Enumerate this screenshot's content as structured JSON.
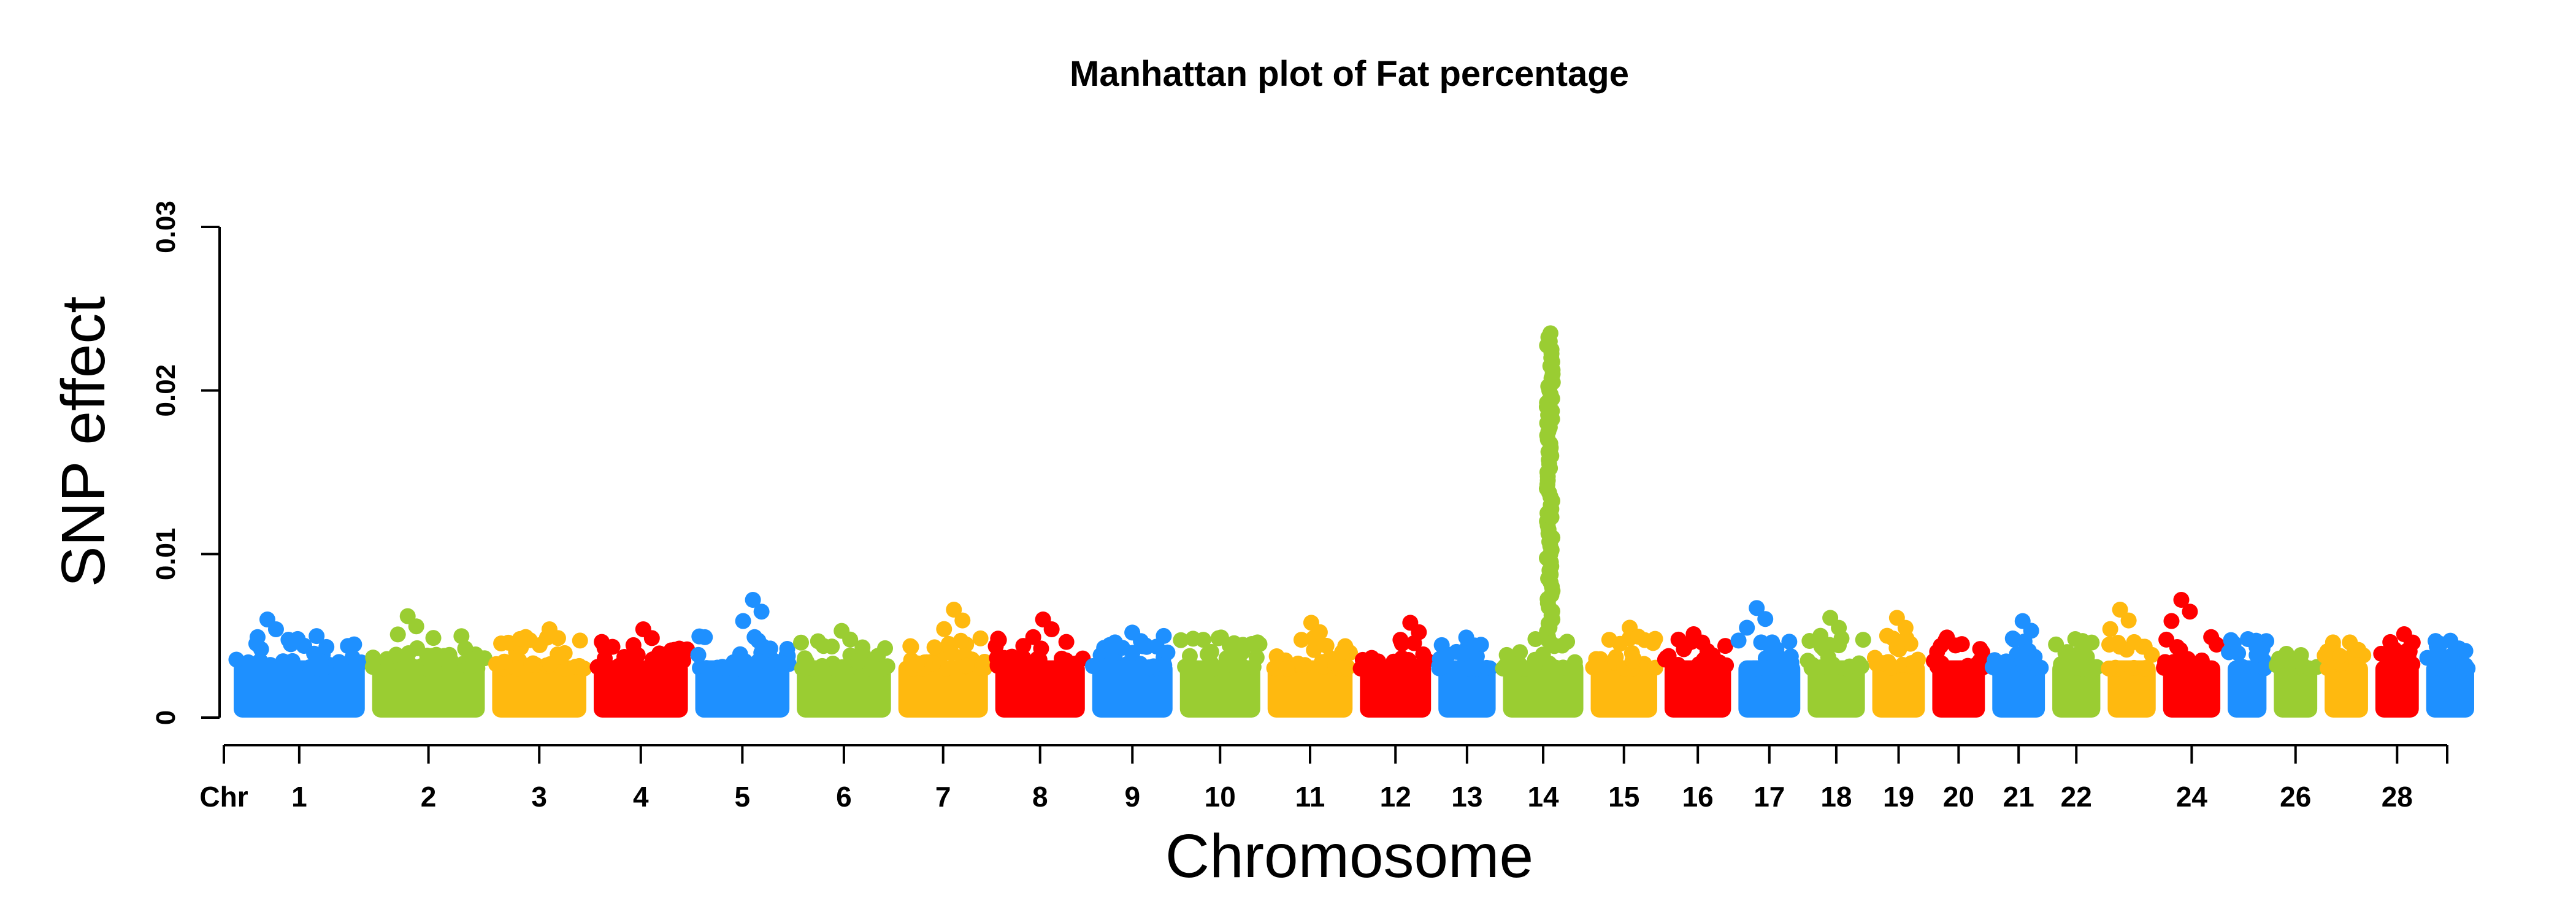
{
  "chart_data": {
    "type": "scatter",
    "title": "Manhattan plot of Fat percentage",
    "xlabel": "Chromosome",
    "ylabel": "SNP effect",
    "ylim": [
      0,
      0.03
    ],
    "yticks": [
      {
        "value": 0,
        "label": "0"
      },
      {
        "value": 0.01,
        "label": "0.01"
      },
      {
        "value": 0.02,
        "label": "0.02"
      },
      {
        "value": 0.03,
        "label": "0.03"
      }
    ],
    "x_prefix_label": "Chr",
    "grid": false,
    "legend": "none",
    "colors": [
      "#1E90FF",
      "#9ACD32",
      "#FFB90F",
      "#FF0000"
    ],
    "chromosomes": [
      {
        "chr": 1,
        "label": "1",
        "span": [
          0.0,
          1.5
        ],
        "peak": 0.006
      },
      {
        "chr": 2,
        "label": "2",
        "span": [
          1.5,
          2.8
        ],
        "peak": 0.0062
      },
      {
        "chr": 3,
        "label": "3",
        "span": [
          2.8,
          3.9
        ],
        "peak": 0.0054
      },
      {
        "chr": 4,
        "label": "4",
        "span": [
          3.9,
          5.0
        ],
        "peak": 0.0054
      },
      {
        "chr": 5,
        "label": "5",
        "span": [
          5.0,
          6.1
        ],
        "peak": 0.0072
      },
      {
        "chr": 6,
        "label": "6",
        "span": [
          6.1,
          7.2
        ],
        "peak": 0.0053
      },
      {
        "chr": 7,
        "label": "7",
        "span": [
          7.2,
          8.25
        ],
        "peak": 0.0066
      },
      {
        "chr": 8,
        "label": "8",
        "span": [
          8.25,
          9.3
        ],
        "peak": 0.006
      },
      {
        "chr": 9,
        "label": "9",
        "span": [
          9.3,
          10.25
        ],
        "peak": 0.0052
      },
      {
        "chr": 10,
        "label": "10",
        "span": [
          10.25,
          11.2
        ],
        "peak": 0.0049
      },
      {
        "chr": 11,
        "label": "11",
        "span": [
          11.2,
          12.2
        ],
        "peak": 0.0058
      },
      {
        "chr": 12,
        "label": "12",
        "span": [
          12.2,
          13.05
        ],
        "peak": 0.0058
      },
      {
        "chr": 13,
        "label": "13",
        "span": [
          13.05,
          13.75
        ],
        "peak": 0.0049
      },
      {
        "chr": 14,
        "label": "14",
        "span": [
          13.75,
          14.7
        ],
        "peak": 0.0236
      },
      {
        "chr": 15,
        "label": "15",
        "span": [
          14.7,
          15.5
        ],
        "peak": 0.0055
      },
      {
        "chr": 16,
        "label": "16",
        "span": [
          15.5,
          16.3
        ],
        "peak": 0.0051
      },
      {
        "chr": 17,
        "label": "17",
        "span": [
          16.3,
          17.05
        ],
        "peak": 0.0067
      },
      {
        "chr": 18,
        "label": "18",
        "span": [
          17.05,
          17.75
        ],
        "peak": 0.0061
      },
      {
        "chr": 19,
        "label": "19",
        "span": [
          17.75,
          18.4
        ],
        "peak": 0.0061
      },
      {
        "chr": 20,
        "label": "20",
        "span": [
          18.4,
          19.05
        ],
        "peak": 0.0049
      },
      {
        "chr": 21,
        "label": "21",
        "span": [
          19.05,
          19.7
        ],
        "peak": 0.0059
      },
      {
        "chr": 22,
        "label": "22",
        "span": [
          19.7,
          20.3
        ],
        "peak": 0.0048
      },
      {
        "chr": 23,
        "label": "",
        "span": [
          20.3,
          20.9
        ],
        "peak": 0.0066
      },
      {
        "chr": 24,
        "label": "24",
        "span": [
          20.9,
          21.6
        ],
        "peak": 0.0072
      },
      {
        "chr": 25,
        "label": "",
        "span": [
          21.6,
          22.1
        ],
        "peak": 0.0048
      },
      {
        "chr": 26,
        "label": "26",
        "span": [
          22.1,
          22.65
        ],
        "peak": 0.0039
      },
      {
        "chr": 27,
        "label": "",
        "span": [
          22.65,
          23.2
        ],
        "peak": 0.0046
      },
      {
        "chr": 28,
        "label": "28",
        "span": [
          23.2,
          23.75
        ],
        "peak": 0.0051
      },
      {
        "chr": 29,
        "label": "",
        "span": [
          23.75,
          24.35
        ],
        "peak": 0.0047
      }
    ]
  }
}
